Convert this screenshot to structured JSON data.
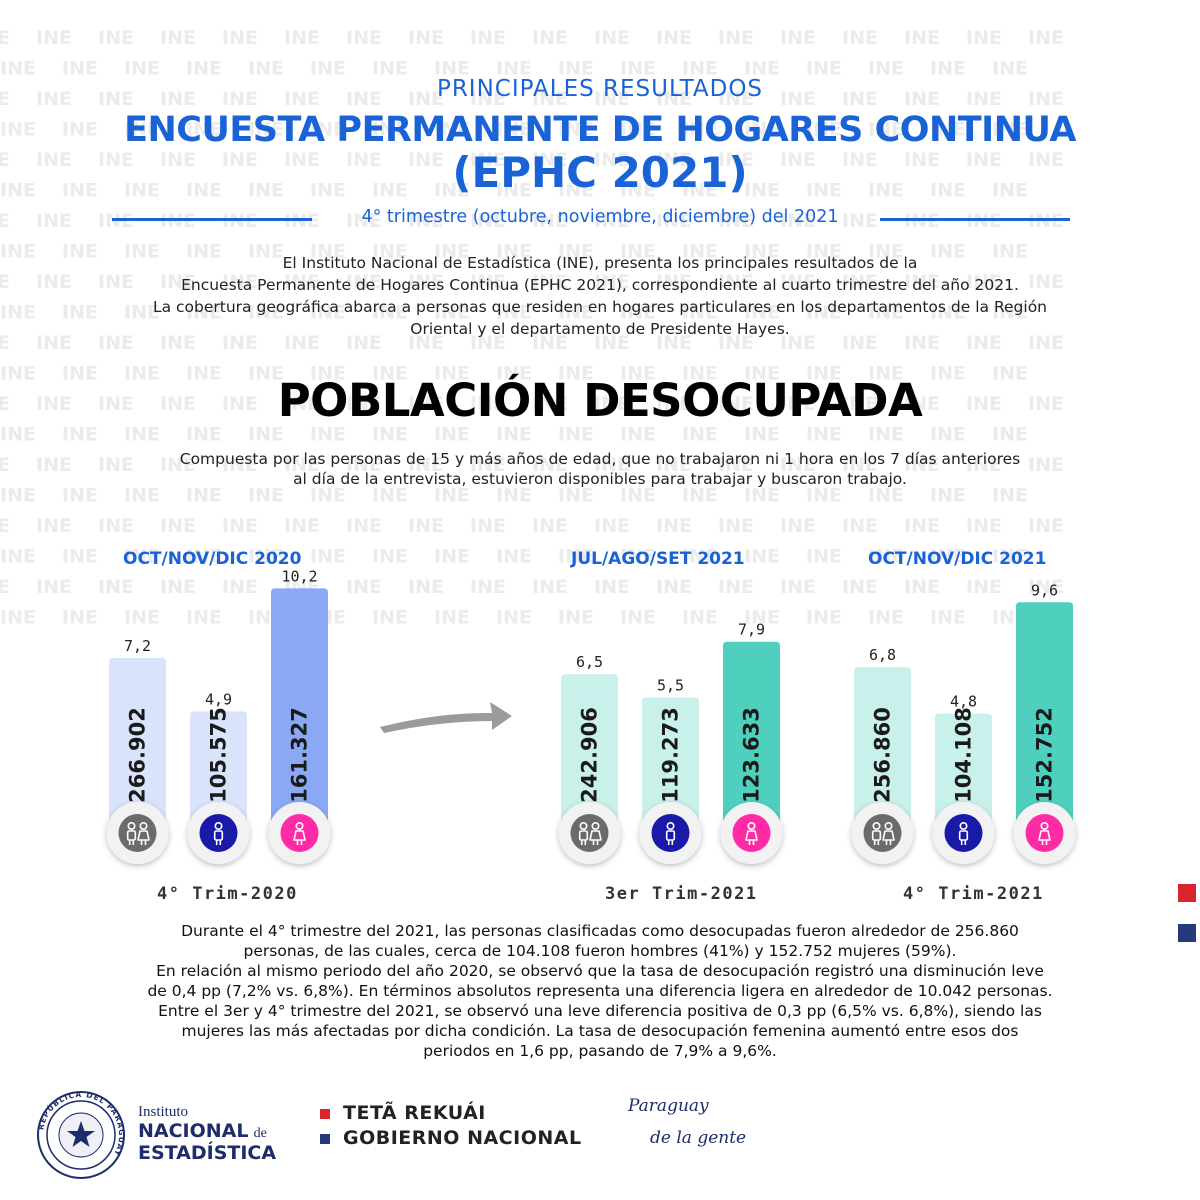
{
  "watermark_text": "INE",
  "header": {
    "pre_title": "PRINCIPALES RESULTADOS",
    "title_line1": "ENCUESTA PERMANENTE DE HOGARES CONTINUA",
    "title_line2": "(EPHC 2021)",
    "subtitle": "4° trimestre (octubre, noviembre, diciembre) del 2021"
  },
  "intro": [
    "El Instituto Nacional de Estadística (INE), presenta los principales resultados de la",
    "Encuesta Permanente de Hogares Continua (EPHC 2021), correspondiente al cuarto trimestre del año 2021.",
    "La cobertura geográfica abarca a personas que residen en hogares particulares en los departamentos de la Región",
    "Oriental y el departamento de Presidente Hayes."
  ],
  "section": {
    "title": "POBLACIÓN DESOCUPADA",
    "definition_line1": "Compuesta por las personas de 15 y más años de edad,  que no trabajaron ni 1 hora en los 7 días anteriores",
    "definition_line2": "al día de la entrevista, estuvieron disponibles para trabajar y buscaron trabajo."
  },
  "colors": {
    "blue_accent": "#1a63d6",
    "group1_bar": "#8ba8f5",
    "group1_bar_light": "#d9e3fc",
    "group2_bar": "#4fd0bf",
    "group2_bar_light": "#c8f1eb",
    "total_icon": "#6b6b6b",
    "male_icon": "#1a1aa8",
    "female_icon": "#ff2aa6",
    "square_red": "#d9252b",
    "square_blue": "#253a7a"
  },
  "chart_data": {
    "type": "bar",
    "ylabel": "",
    "ylim": [
      0,
      12
    ],
    "unit_rate": "%",
    "groups": [
      {
        "period": "OCT/NOV/DIC  2020",
        "label": "4° Trim-2020",
        "bars": [
          {
            "category": "Total",
            "icon": "people-icon",
            "rate": "7,2",
            "rate_value": 7.2,
            "count": "266.902"
          },
          {
            "category": "Hombres",
            "icon": "male-icon",
            "rate": "4,9",
            "rate_value": 4.9,
            "count": "105.575"
          },
          {
            "category": "Mujeres",
            "icon": "female-icon",
            "rate": "10,2",
            "rate_value": 10.2,
            "count": "161.327"
          }
        ]
      },
      {
        "period": "JUL/AGO/SET 2021",
        "label": "3er Trim-2021",
        "bars": [
          {
            "category": "Total",
            "icon": "people-icon",
            "rate": "6,5",
            "rate_value": 6.5,
            "count": "242.906"
          },
          {
            "category": "Hombres",
            "icon": "male-icon",
            "rate": "5,5",
            "rate_value": 5.5,
            "count": "119.273"
          },
          {
            "category": "Mujeres",
            "icon": "female-icon",
            "rate": "7,9",
            "rate_value": 7.9,
            "count": "123.633"
          }
        ]
      },
      {
        "period": "OCT/NOV/DIC 2021",
        "label": "4° Trim-2021",
        "bars": [
          {
            "category": "Total",
            "icon": "people-icon",
            "rate": "6,8",
            "rate_value": 6.8,
            "count": "256.860"
          },
          {
            "category": "Hombres",
            "icon": "male-icon",
            "rate": "4,8",
            "rate_value": 4.8,
            "count": "104.108"
          },
          {
            "category": "Mujeres",
            "icon": "female-icon",
            "rate": "9,6",
            "rate_value": 9.6,
            "count": "152.752"
          }
        ]
      }
    ]
  },
  "summary": [
    "Durante el 4° trimestre del 2021, las personas clasificadas como desocupadas fueron alrededor de 256.860",
    "personas, de las cuales, cerca de 104.108 fueron hombres (41%) y 152.752 mujeres (59%).",
    "En relación al mismo periodo del año 2020, se observó que la tasa de desocupación registró una disminución leve",
    "de 0,4 pp (7,2% vs. 6,8%). En términos absolutos representa una diferencia ligera en alrededor de 10.042 personas.",
    "Entre el 3er y 4° trimestre del 2021, se observó una leve diferencia positiva de 0,3 pp (6,5% vs. 6,8%), siendo las",
    "mujeres las más afectadas por dicha condición. La tasa de desocupación femenina aumentó entre esos dos",
    "periodos en 1,6 pp, pasando de 7,9% a 9,6%."
  ],
  "footer": {
    "seal_text": "REPÚBLICA DEL PARAGUAY",
    "ine_line1": "Instituto",
    "ine_line2a": "NACIONAL",
    "ine_line2b": "de",
    "ine_line3": "ESTADÍSTICA",
    "gov_line1": "TETÃ REKUÁI",
    "gov_line2": "GOBIERNO NACIONAL",
    "slogan_line1": "Paraguay",
    "slogan_line2": "de la gente"
  }
}
